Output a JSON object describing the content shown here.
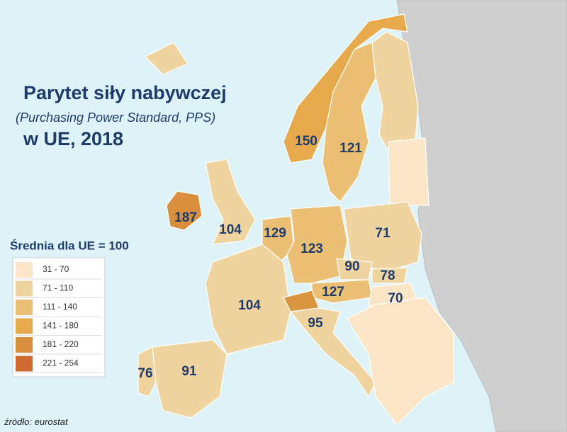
{
  "title": {
    "line1": "Parytet siły nabywczej",
    "line2": "(Purchasing Power Standard, PPS)",
    "line3": "w UE, 2018"
  },
  "legend": {
    "title": "Średnia dla UE = 100",
    "items": [
      {
        "label": "31 - 70",
        "color": "#fae6c6"
      },
      {
        "label": "71 - 110",
        "color": "#f0d4a0"
      },
      {
        "label": "111 - 140",
        "color": "#ebc075"
      },
      {
        "label": "141 - 180",
        "color": "#e6aa4c"
      },
      {
        "label": "181 - 220",
        "color": "#d98f3c"
      },
      {
        "label": "221 - 254",
        "color": "#d06a30"
      }
    ]
  },
  "labels": [
    150,
    121,
    187,
    104,
    129,
    123,
    71,
    90,
    78,
    127,
    70,
    104,
    95,
    76,
    91
  ],
  "source": "źródło: eurostat"
}
